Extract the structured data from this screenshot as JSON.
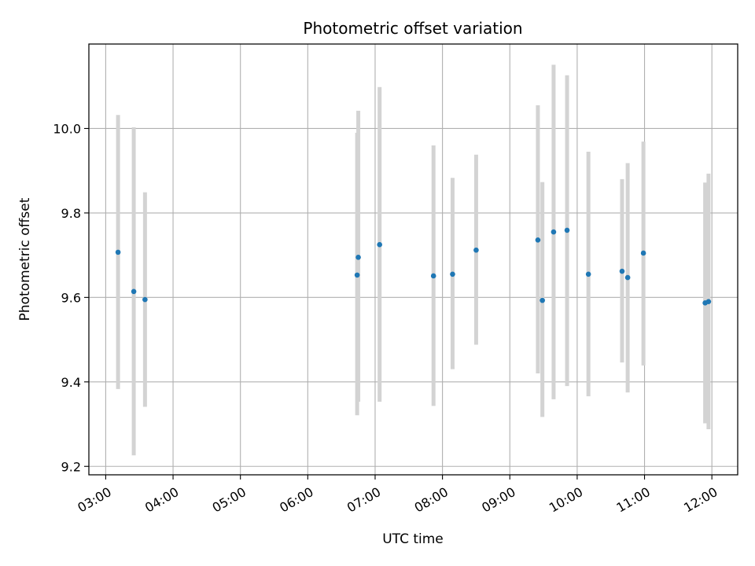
{
  "chart_data": {
    "type": "scatter",
    "title": "Photometric offset variation",
    "xlabel": "UTC time",
    "ylabel": "Photometric offset",
    "x_tick_labels": [
      "03:00",
      "04:00",
      "05:00",
      "06:00",
      "07:00",
      "08:00",
      "09:00",
      "10:00",
      "11:00",
      "12:00"
    ],
    "x_ticks_hours": [
      3,
      4,
      5,
      6,
      7,
      8,
      9,
      10,
      11,
      12
    ],
    "y_ticks": [
      9.2,
      9.4,
      9.6,
      9.8,
      10.0
    ],
    "y_tick_labels": [
      "9.2",
      "9.4",
      "9.6",
      "9.8",
      "10.0"
    ],
    "xlim": [
      "02:45",
      "12:23"
    ],
    "ylim": [
      9.18,
      10.2
    ],
    "grid": true,
    "marker_color": "#1f77b4",
    "errorbar_color": "#d3d3d3",
    "points": [
      {
        "t": "03:11",
        "y": 9.707,
        "lo": 9.383,
        "hi": 10.032
      },
      {
        "t": "03:25",
        "y": 9.614,
        "lo": 9.226,
        "hi": 10.003
      },
      {
        "t": "03:35",
        "y": 9.595,
        "lo": 9.341,
        "hi": 9.849
      },
      {
        "t": "06:44",
        "y": 9.653,
        "lo": 9.321,
        "hi": 9.99
      },
      {
        "t": "06:45",
        "y": 9.695,
        "lo": 9.353,
        "hi": 10.042
      },
      {
        "t": "07:04",
        "y": 9.725,
        "lo": 9.353,
        "hi": 10.098
      },
      {
        "t": "07:52",
        "y": 9.651,
        "lo": 9.343,
        "hi": 9.96
      },
      {
        "t": "08:09",
        "y": 9.655,
        "lo": 9.43,
        "hi": 9.883
      },
      {
        "t": "08:30",
        "y": 9.712,
        "lo": 9.488,
        "hi": 9.938
      },
      {
        "t": "09:25",
        "y": 9.736,
        "lo": 9.42,
        "hi": 10.055
      },
      {
        "t": "09:29",
        "y": 9.593,
        "lo": 9.317,
        "hi": 9.873
      },
      {
        "t": "09:39",
        "y": 9.755,
        "lo": 9.359,
        "hi": 10.151
      },
      {
        "t": "09:51",
        "y": 9.759,
        "lo": 9.39,
        "hi": 10.126
      },
      {
        "t": "10:10",
        "y": 9.655,
        "lo": 9.366,
        "hi": 9.945
      },
      {
        "t": "10:40",
        "y": 9.662,
        "lo": 9.446,
        "hi": 9.88
      },
      {
        "t": "10:45",
        "y": 9.647,
        "lo": 9.375,
        "hi": 9.918
      },
      {
        "t": "10:59",
        "y": 9.705,
        "lo": 9.439,
        "hi": 9.969
      },
      {
        "t": "11:54",
        "y": 9.587,
        "lo": 9.302,
        "hi": 9.872
      },
      {
        "t": "11:57",
        "y": 9.59,
        "lo": 9.288,
        "hi": 9.893
      }
    ]
  }
}
